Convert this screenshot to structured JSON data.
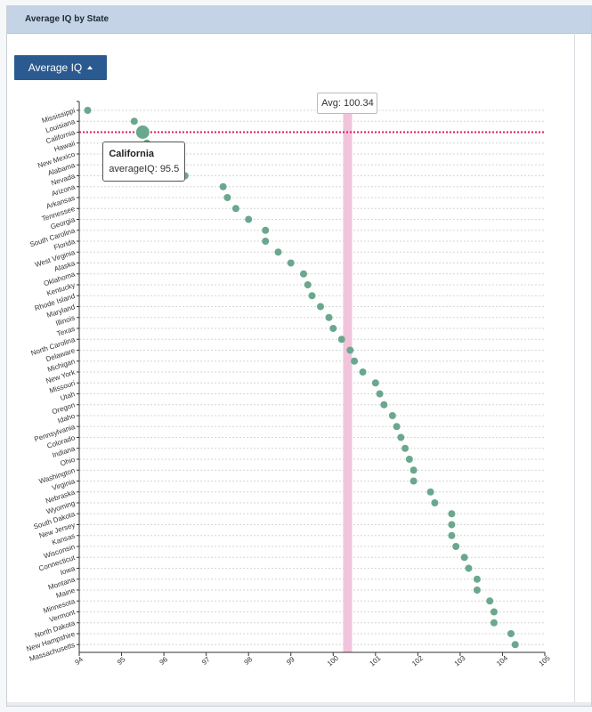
{
  "panel": {
    "title": "Average IQ by State"
  },
  "dropdown": {
    "label": "Average IQ"
  },
  "tooltip": {
    "state": "California",
    "metric": "averageIQ",
    "value": 95.5
  },
  "average": {
    "label": "Avg: 100.34",
    "value": 100.34
  },
  "colors": {
    "point": "#6aa88e",
    "hover_line": "#d81b60",
    "avg_band": "#f2c4dc",
    "grid": "#d6d6d6",
    "header": "#c5d3e6",
    "button": "#2a5a8f"
  },
  "chart_data": {
    "type": "scatter",
    "title": "",
    "xlabel": "",
    "ylabel": "",
    "xlim": [
      94,
      105
    ],
    "x_ticks": [
      94,
      95,
      96,
      97,
      98,
      99,
      100,
      101,
      102,
      103,
      104,
      105
    ],
    "grid": "horizontal dotted",
    "highlight": "California",
    "series": [
      {
        "points": [
          {
            "state": "Mississippi",
            "iq": 94.2
          },
          {
            "state": "Louisiana",
            "iq": 95.3
          },
          {
            "state": "California",
            "iq": 95.5
          },
          {
            "state": "Hawaii",
            "iq": 95.6
          },
          {
            "state": "New Mexico",
            "iq": 95.7
          },
          {
            "state": "Alabama",
            "iq": 95.7
          },
          {
            "state": "Nevada",
            "iq": 96.5
          },
          {
            "state": "Arizona",
            "iq": 97.4
          },
          {
            "state": "Arkansas",
            "iq": 97.5
          },
          {
            "state": "Tennessee",
            "iq": 97.7
          },
          {
            "state": "Georgia",
            "iq": 98.0
          },
          {
            "state": "South Carolina",
            "iq": 98.4
          },
          {
            "state": "Florida",
            "iq": 98.4
          },
          {
            "state": "West Virginia",
            "iq": 98.7
          },
          {
            "state": "Alaska",
            "iq": 99.0
          },
          {
            "state": "Oklahoma",
            "iq": 99.3
          },
          {
            "state": "Kentucky",
            "iq": 99.4
          },
          {
            "state": "Rhode Island",
            "iq": 99.5
          },
          {
            "state": "Maryland",
            "iq": 99.7
          },
          {
            "state": "Illinois",
            "iq": 99.9
          },
          {
            "state": "Texas",
            "iq": 100.0
          },
          {
            "state": "North Carolina",
            "iq": 100.2
          },
          {
            "state": "Delaware",
            "iq": 100.4
          },
          {
            "state": "Michigan",
            "iq": 100.5
          },
          {
            "state": "New York",
            "iq": 100.7
          },
          {
            "state": "Missouri",
            "iq": 101.0
          },
          {
            "state": "Utah",
            "iq": 101.1
          },
          {
            "state": "Oregon",
            "iq": 101.2
          },
          {
            "state": "Idaho",
            "iq": 101.4
          },
          {
            "state": "Pennsylvania",
            "iq": 101.5
          },
          {
            "state": "Colorado",
            "iq": 101.6
          },
          {
            "state": "Indiana",
            "iq": 101.7
          },
          {
            "state": "Ohio",
            "iq": 101.8
          },
          {
            "state": "Washington",
            "iq": 101.9
          },
          {
            "state": "Virginia",
            "iq": 101.9
          },
          {
            "state": "Nebraska",
            "iq": 102.3
          },
          {
            "state": "Wyoming",
            "iq": 102.4
          },
          {
            "state": "South Dakota",
            "iq": 102.8
          },
          {
            "state": "New Jersey",
            "iq": 102.8
          },
          {
            "state": "Kansas",
            "iq": 102.8
          },
          {
            "state": "Wisconsin",
            "iq": 102.9
          },
          {
            "state": "Connecticut",
            "iq": 103.1
          },
          {
            "state": "Iowa",
            "iq": 103.2
          },
          {
            "state": "Montana",
            "iq": 103.4
          },
          {
            "state": "Maine",
            "iq": 103.4
          },
          {
            "state": "Minnesota",
            "iq": 103.7
          },
          {
            "state": "Vermont",
            "iq": 103.8
          },
          {
            "state": "North Dakota",
            "iq": 103.8
          },
          {
            "state": "New Hampshire",
            "iq": 104.2
          },
          {
            "state": "Massachusetts",
            "iq": 104.3
          }
        ]
      }
    ]
  }
}
